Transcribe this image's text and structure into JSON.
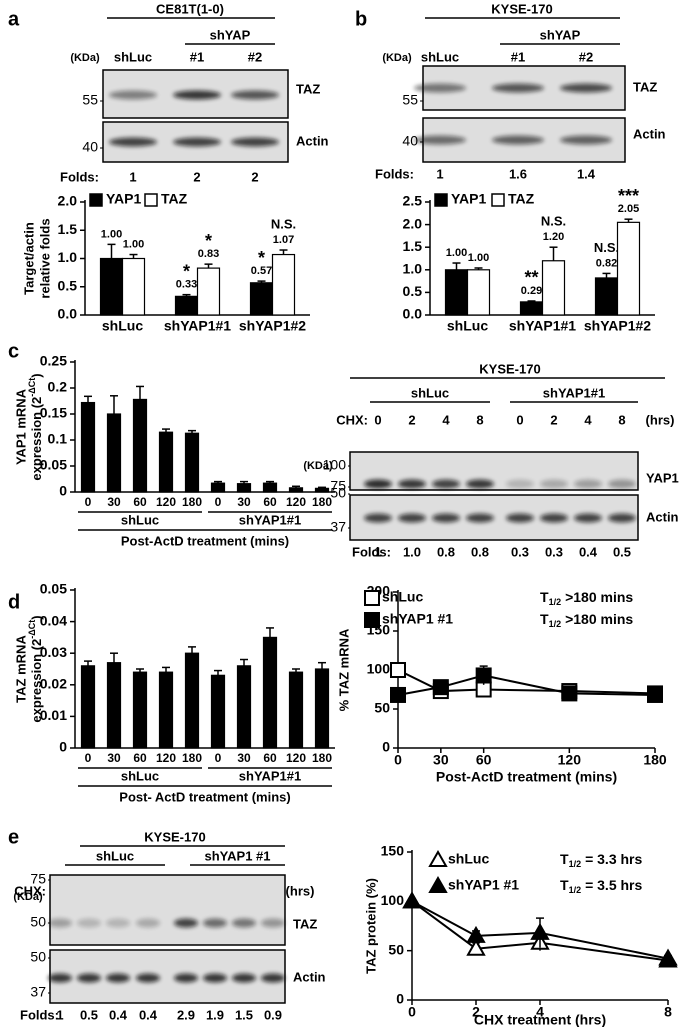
{
  "panels": [
    "a",
    "b",
    "c",
    "d",
    "e"
  ],
  "blots": [
    {
      "title": "CE81T(1-0)",
      "groups": [
        "shYAP"
      ],
      "kda": "(KDa)",
      "lanes": [
        "shLuc",
        "#1",
        "#2"
      ],
      "markers": [
        55,
        40
      ],
      "bands": [
        "TAZ",
        "Actin"
      ],
      "folds_label": "Folds:",
      "folds": [
        "1",
        "2",
        "2"
      ]
    },
    {
      "title": "KYSE-170",
      "groups": [
        "shYAP"
      ],
      "kda": "(KDa)",
      "lanes": [
        "shLuc",
        "#1",
        "#2"
      ],
      "markers": [
        55,
        40
      ],
      "bands": [
        "TAZ",
        "Actin"
      ],
      "folds_label": "Folds:",
      "folds": [
        "1",
        "1.6",
        "1.4"
      ]
    },
    {
      "title": "KYSE-170",
      "groups": [
        "shLuc",
        "shYAP1#1"
      ],
      "cond_label": "CHX:",
      "lanes": [
        0,
        2,
        4,
        8,
        0,
        2,
        4,
        8
      ],
      "unit": "(hrs)",
      "kda": "(KDa)",
      "markers": [
        100,
        75,
        50,
        37
      ],
      "bands": [
        "YAP1",
        "Actin"
      ],
      "folds_label": "Folds:",
      "folds": [
        "1",
        "1.0",
        "0.8",
        "0.8",
        "0.3",
        "0.3",
        "0.4",
        "0.5"
      ]
    },
    {
      "title": "KYSE-170",
      "groups": [
        "shLuc",
        "shYAP1 #1"
      ],
      "cond_label": "CHX:",
      "lanes": [
        0,
        2,
        4,
        8,
        0,
        2,
        4,
        8
      ],
      "unit": "(hrs)",
      "kda": "(KDa)",
      "markers": [
        75,
        50,
        50,
        37
      ],
      "bands": [
        "TAZ",
        "Actin"
      ],
      "folds_label": "Folds:",
      "folds": [
        "1",
        "0.5",
        "0.4",
        "0.4",
        "2.9",
        "1.9",
        "1.5",
        "0.9"
      ]
    }
  ],
  "chart_data": [
    {
      "type": "bar",
      "ylabel": [
        "Target/actin",
        "relative folds"
      ],
      "categories": [
        "shLuc",
        "shYAP1#1",
        "shYAP1#2"
      ],
      "series": [
        {
          "name": "YAP1",
          "color": "#000000",
          "values": [
            1.0,
            0.33,
            0.57
          ],
          "value_labels": [
            "1.00",
            "0.33",
            "0.57"
          ],
          "errors": [
            0.25,
            0.03,
            0.03
          ],
          "annotations": [
            null,
            "*",
            "*"
          ]
        },
        {
          "name": "TAZ",
          "color": "#ffffff",
          "values": [
            1.0,
            0.83,
            1.07
          ],
          "value_labels": [
            "1.00",
            "0.83",
            "1.07"
          ],
          "errors": [
            0.07,
            0.07,
            0.08
          ],
          "annotations": [
            null,
            "*",
            "N.S."
          ]
        }
      ],
      "ylim": [
        0,
        2
      ],
      "yticks": [
        {
          "value": 0,
          "label": "0.0"
        },
        {
          "value": 0.5,
          "label": "0.5"
        },
        {
          "value": 1,
          "label": "1.0"
        },
        {
          "value": 1.5,
          "label": "1.5"
        },
        {
          "value": 2,
          "label": "2.0"
        }
      ]
    },
    {
      "type": "bar",
      "categories": [
        "shLuc",
        "shYAP1#1",
        "shYAP1#2"
      ],
      "series": [
        {
          "name": "YAP1",
          "color": "#000000",
          "values": [
            1.0,
            0.29,
            0.82
          ],
          "value_labels": [
            "1.00",
            "0.29",
            "0.82"
          ],
          "errors": [
            0.15,
            0.02,
            0.1
          ],
          "annotations": [
            null,
            "**",
            "N.S."
          ]
        },
        {
          "name": "TAZ",
          "color": "#ffffff",
          "values": [
            1.0,
            1.2,
            2.05
          ],
          "value_labels": [
            "1.00",
            "1.20",
            "2.05"
          ],
          "errors": [
            0.04,
            0.3,
            0.07
          ],
          "annotations": [
            null,
            "N.S.",
            "***"
          ]
        }
      ],
      "ylim": [
        0,
        2.5
      ],
      "yticks": [
        {
          "value": 0,
          "label": "0.0"
        },
        {
          "value": 0.5,
          "label": "0.5"
        },
        {
          "value": 1,
          "label": "1.0"
        },
        {
          "value": 1.5,
          "label": "1.5"
        },
        {
          "value": 2,
          "label": "2.0"
        },
        {
          "value": 2.5,
          "label": "2.5"
        }
      ]
    },
    {
      "type": "bar",
      "ylabel": [
        "YAP1 mRNA",
        "expression (2"
      ],
      "ylabel_sup": "-ΔCt",
      "ylabel_end": ")",
      "categories": [
        "0",
        "30",
        "60",
        "120",
        "180",
        "0",
        "30",
        "60",
        "120",
        "180"
      ],
      "groups": [
        "shLuc",
        "shYAP1#1"
      ],
      "xlabel": "Post-ActD treatment (mins)",
      "values": [
        0.172,
        0.15,
        0.178,
        0.115,
        0.113,
        0.017,
        0.016,
        0.017,
        0.008,
        0.007
      ],
      "errors": [
        0.012,
        0.035,
        0.025,
        0.006,
        0.005,
        0.003,
        0.004,
        0.003,
        0.003,
        0.002
      ],
      "color": "#000000",
      "ylim": [
        0,
        0.25
      ],
      "yticks": [
        0,
        0.05,
        0.1,
        0.15,
        0.2,
        0.25
      ]
    },
    {
      "type": "bar",
      "ylabel": [
        "TAZ mRNA",
        "expression (2"
      ],
      "ylabel_sup": "-ΔCt",
      "ylabel_end": ")",
      "categories": [
        "0",
        "30",
        "60",
        "120",
        "180",
        "0",
        "30",
        "60",
        "120",
        "180"
      ],
      "groups": [
        "shLuc",
        "shYAP1#1"
      ],
      "xlabel": "Post- ActD treatment (mins)",
      "values": [
        0.026,
        0.027,
        0.024,
        0.024,
        0.03,
        0.023,
        0.026,
        0.035,
        0.024,
        0.025
      ],
      "errors": [
        0.0015,
        0.003,
        0.001,
        0.0015,
        0.002,
        0.0015,
        0.002,
        0.003,
        0.001,
        0.002
      ],
      "color": "#000000",
      "ylim": [
        0,
        0.05
      ],
      "yticks": [
        0,
        0.01,
        0.02,
        0.03,
        0.04,
        0.05
      ]
    },
    {
      "type": "line",
      "ylabel": "% TAZ mRNA",
      "xlabel": "Post-ActD treatment (mins)",
      "x": [
        0,
        30,
        60,
        120,
        180
      ],
      "series": [
        {
          "name": "shLuc",
          "marker": "square",
          "color": "#ffffff",
          "values": [
            100,
            73,
            75,
            73,
            70
          ],
          "errors": [
            3,
            5,
            3,
            3,
            2
          ]
        },
        {
          "name": "shYAP1 #1",
          "marker": "square",
          "color": "#000000",
          "values": [
            68,
            78,
            93,
            70,
            68
          ],
          "errors": [
            5,
            3,
            12,
            4,
            3
          ]
        }
      ],
      "half_life": [
        {
          "symbol": "T",
          "sub": "1/2",
          "text": ">180 mins"
        },
        {
          "symbol": "T",
          "sub": "1/2",
          "text": ">180 mins"
        }
      ],
      "xlim": [
        0,
        180
      ],
      "xticks": [
        0,
        30,
        60,
        120,
        180
      ],
      "ylim": [
        0,
        200
      ],
      "yticks": [
        0,
        50,
        100,
        150,
        200
      ]
    },
    {
      "type": "line",
      "ylabel": "TAZ protein (%)",
      "xlabel": "CHX treatment (hrs)",
      "x": [
        0,
        2,
        4,
        8
      ],
      "series": [
        {
          "name": "shLuc",
          "marker": "triangle",
          "color": "#ffffff",
          "values": [
            100,
            52,
            58,
            40
          ],
          "errors": [
            0,
            6,
            8,
            3
          ]
        },
        {
          "name": "shYAP1 #1",
          "marker": "triangle",
          "color": "#000000",
          "values": [
            100,
            65,
            68,
            42
          ],
          "errors": [
            0,
            5,
            15,
            3
          ]
        }
      ],
      "half_life": [
        {
          "symbol": "T",
          "sub": "1/2",
          "text": "= 3.3 hrs"
        },
        {
          "symbol": "T",
          "sub": "1/2",
          "text": "= 3.5 hrs"
        }
      ],
      "xlim": [
        0,
        8
      ],
      "xticks": [
        0,
        2,
        4,
        8
      ],
      "ylim": [
        0,
        150
      ],
      "yticks": [
        0,
        50,
        100,
        150
      ]
    }
  ]
}
